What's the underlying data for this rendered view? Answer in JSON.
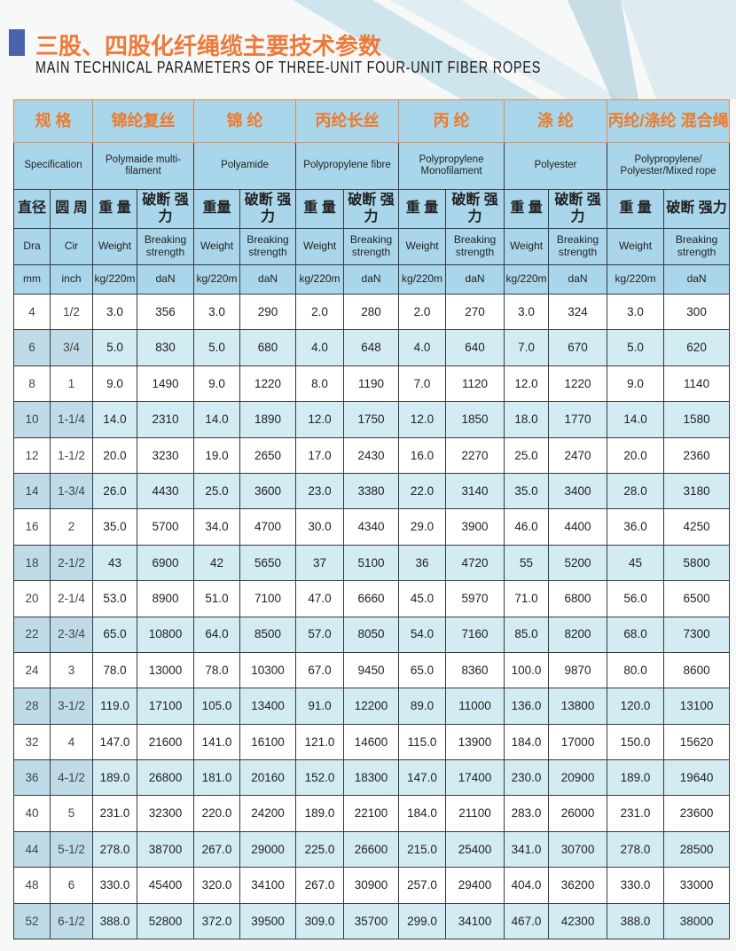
{
  "title_cn": "三股、四股化纤绳缆主要技术参数",
  "title_en": "MAIN TECHNICAL PARAMETERS OF THREE-UNIT FOUR-UNIT FIBER ROPES",
  "colors": {
    "accent_orange": "#ee7a3a",
    "header_blue": "#a9d6ea",
    "row_alt": "#d3ebf3",
    "square_blue": "#4a62a8"
  },
  "header": {
    "row1": [
      "规 格",
      "锦纶复丝",
      "锦 纶",
      "丙纶长丝",
      "丙 纶",
      "涤 纶",
      "丙纶/涤纶 混合绳"
    ],
    "row2": [
      "Specification",
      "Polymaide multi-filament",
      "Polyamide",
      "Polypropylene fibre",
      "Polypropylene Monofilament",
      "Polyester",
      "Polypropylene/ Polyester/Mixed rope"
    ],
    "row3": [
      "直径",
      "圆 周",
      "重 量",
      "破断 强力",
      "重量",
      "破断 强力",
      "重 量",
      "破断 强力",
      "重 量",
      "破断 强力",
      "重 量",
      "破断 强力",
      "重 量",
      "破断 强力"
    ],
    "row4": [
      "Dra",
      "Cir",
      "Weight",
      "Breaking strength",
      "Weight",
      "Breaking strength",
      "Weight",
      "Breaking strength",
      "Weight",
      "Breaking strength",
      "Weight",
      "Breaking strength",
      "Weight",
      "Breaking strength"
    ],
    "row5": [
      "mm",
      "inch",
      "kg/220m",
      "daN",
      "kg/220m",
      "daN",
      "kg/220m",
      "daN",
      "kg/220m",
      "daN",
      "kg/220m",
      "daN",
      "kg/220m",
      "daN"
    ]
  },
  "rows": [
    [
      "4",
      "1/2",
      "3.0",
      "356",
      "3.0",
      "290",
      "2.0",
      "280",
      "2.0",
      "270",
      "3.0",
      "324",
      "3.0",
      "300"
    ],
    [
      "6",
      "3/4",
      "5.0",
      "830",
      "5.0",
      "680",
      "4.0",
      "648",
      "4.0",
      "640",
      "7.0",
      "670",
      "5.0",
      "620"
    ],
    [
      "8",
      "1",
      "9.0",
      "1490",
      "9.0",
      "1220",
      "8.0",
      "1190",
      "7.0",
      "1120",
      "12.0",
      "1220",
      "9.0",
      "1140"
    ],
    [
      "10",
      "1-1/4",
      "14.0",
      "2310",
      "14.0",
      "1890",
      "12.0",
      "1750",
      "12.0",
      "1850",
      "18.0",
      "1770",
      "14.0",
      "1580"
    ],
    [
      "12",
      "1-1/2",
      "20.0",
      "3230",
      "19.0",
      "2650",
      "17.0",
      "2430",
      "16.0",
      "2270",
      "25.0",
      "2470",
      "20.0",
      "2360"
    ],
    [
      "14",
      "1-3/4",
      "26.0",
      "4430",
      "25.0",
      "3600",
      "23.0",
      "3380",
      "22.0",
      "3140",
      "35.0",
      "3400",
      "28.0",
      "3180"
    ],
    [
      "16",
      "2",
      "35.0",
      "5700",
      "34.0",
      "4700",
      "30.0",
      "4340",
      "29.0",
      "3900",
      "46.0",
      "4400",
      "36.0",
      "4250"
    ],
    [
      "18",
      "2-1/2",
      "43",
      "6900",
      "42",
      "5650",
      "37",
      "5100",
      "36",
      "4720",
      "55",
      "5200",
      "45",
      "5800"
    ],
    [
      "20",
      "2-1/4",
      "53.0",
      "8900",
      "51.0",
      "7100",
      "47.0",
      "6660",
      "45.0",
      "5970",
      "71.0",
      "6800",
      "56.0",
      "6500"
    ],
    [
      "22",
      "2-3/4",
      "65.0",
      "10800",
      "64.0",
      "8500",
      "57.0",
      "8050",
      "54.0",
      "7160",
      "85.0",
      "8200",
      "68.0",
      "7300"
    ],
    [
      "24",
      "3",
      "78.0",
      "13000",
      "78.0",
      "10300",
      "67.0",
      "9450",
      "65.0",
      "8360",
      "100.0",
      "9870",
      "80.0",
      "8600"
    ],
    [
      "28",
      "3-1/2",
      "119.0",
      "17100",
      "105.0",
      "13400",
      "91.0",
      "12200",
      "89.0",
      "11000",
      "136.0",
      "13800",
      "120.0",
      "13100"
    ],
    [
      "32",
      "4",
      "147.0",
      "21600",
      "141.0",
      "16100",
      "121.0",
      "14600",
      "115.0",
      "13900",
      "184.0",
      "17000",
      "150.0",
      "15620"
    ],
    [
      "36",
      "4-1/2",
      "189.0",
      "26800",
      "181.0",
      "20160",
      "152.0",
      "18300",
      "147.0",
      "17400",
      "230.0",
      "20900",
      "189.0",
      "19640"
    ],
    [
      "40",
      "5",
      "231.0",
      "32300",
      "220.0",
      "24200",
      "189.0",
      "22100",
      "184.0",
      "21100",
      "283.0",
      "26000",
      "231.0",
      "23600"
    ],
    [
      "44",
      "5-1/2",
      "278.0",
      "38700",
      "267.0",
      "29000",
      "225.0",
      "26600",
      "215.0",
      "25400",
      "341.0",
      "30700",
      "278.0",
      "28500"
    ],
    [
      "48",
      "6",
      "330.0",
      "45400",
      "320.0",
      "34100",
      "267.0",
      "30900",
      "257.0",
      "29400",
      "404.0",
      "36200",
      "330.0",
      "33000"
    ],
    [
      "52",
      "6-1/2",
      "388.0",
      "52800",
      "372.0",
      "39500",
      "309.0",
      "35700",
      "299.0",
      "34100",
      "467.0",
      "42300",
      "388.0",
      "38000"
    ]
  ]
}
